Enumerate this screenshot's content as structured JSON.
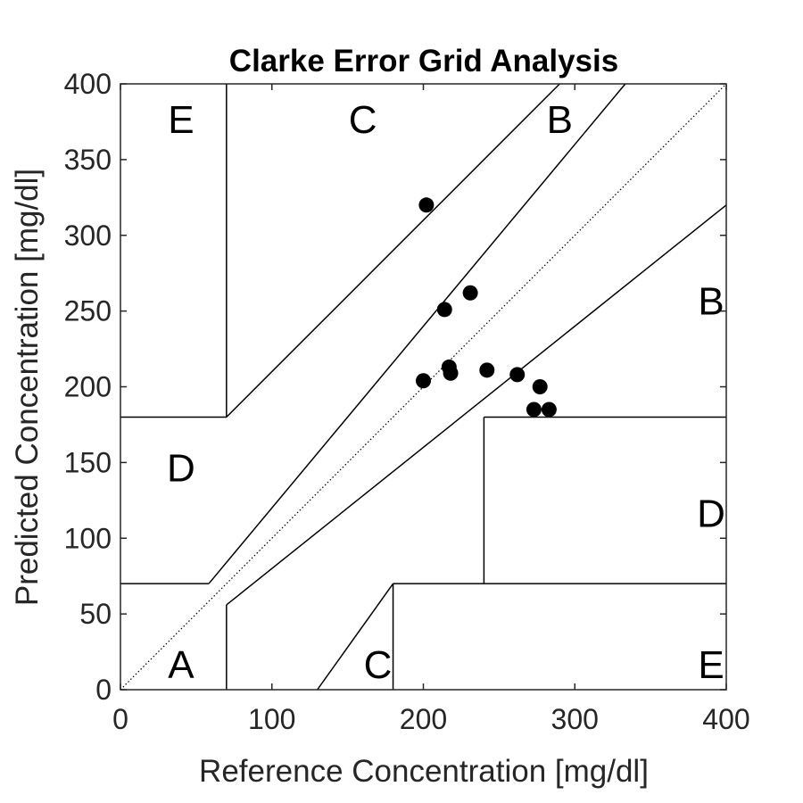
{
  "chart_data": {
    "type": "scatter",
    "title": "Clarke Error Grid Analysis",
    "xlabel": "Reference Concentration [mg/dl]",
    "ylabel": "Predicted Concentration [mg/dl]",
    "xlim": [
      0,
      400
    ],
    "ylim": [
      0,
      400
    ],
    "xticks": [
      0,
      100,
      200,
      300,
      400
    ],
    "yticks": [
      0,
      50,
      100,
      150,
      200,
      250,
      300,
      350,
      400
    ],
    "grid": false,
    "marker_color": "#000000",
    "points": [
      {
        "x": 202,
        "y": 320
      },
      {
        "x": 214,
        "y": 251
      },
      {
        "x": 231,
        "y": 262
      },
      {
        "x": 200,
        "y": 204
      },
      {
        "x": 217,
        "y": 213
      },
      {
        "x": 218,
        "y": 209
      },
      {
        "x": 242,
        "y": 211
      },
      {
        "x": 262,
        "y": 208
      },
      {
        "x": 277,
        "y": 200
      },
      {
        "x": 273,
        "y": 185
      },
      {
        "x": 283,
        "y": 185
      }
    ],
    "zone_lines": [
      [
        [
          70,
          180
        ],
        [
          70,
          400
        ]
      ],
      [
        [
          0,
          180
        ],
        [
          70,
          180
        ]
      ],
      [
        [
          70,
          180
        ],
        [
          290,
          400
        ]
      ],
      [
        [
          70,
          84
        ],
        [
          333.33,
          400
        ]
      ],
      [
        [
          0,
          70
        ],
        [
          58.33,
          70
        ]
      ],
      [
        [
          58.33,
          70
        ],
        [
          70,
          84
        ]
      ],
      [
        [
          70,
          0
        ],
        [
          70,
          56
        ]
      ],
      [
        [
          70,
          56
        ],
        [
          400,
          320
        ]
      ],
      [
        [
          130,
          0
        ],
        [
          180,
          70
        ]
      ],
      [
        [
          180,
          0
        ],
        [
          180,
          70
        ]
      ],
      [
        [
          180,
          70
        ],
        [
          400,
          70
        ]
      ],
      [
        [
          240,
          70
        ],
        [
          240,
          180
        ]
      ],
      [
        [
          240,
          180
        ],
        [
          400,
          180
        ]
      ]
    ],
    "identity_line": [
      [
        0,
        0
      ],
      [
        400,
        400
      ]
    ],
    "region_labels": [
      {
        "text": "E",
        "x": 40,
        "y": 377
      },
      {
        "text": "C",
        "x": 160,
        "y": 377
      },
      {
        "text": "B",
        "x": 290,
        "y": 377
      },
      {
        "text": "B",
        "x": 390,
        "y": 257
      },
      {
        "text": "D",
        "x": 40,
        "y": 147
      },
      {
        "text": "D",
        "x": 390,
        "y": 117
      },
      {
        "text": "A",
        "x": 40,
        "y": 17
      },
      {
        "text": "C",
        "x": 170,
        "y": 17
      },
      {
        "text": "E",
        "x": 390,
        "y": 17
      }
    ]
  }
}
